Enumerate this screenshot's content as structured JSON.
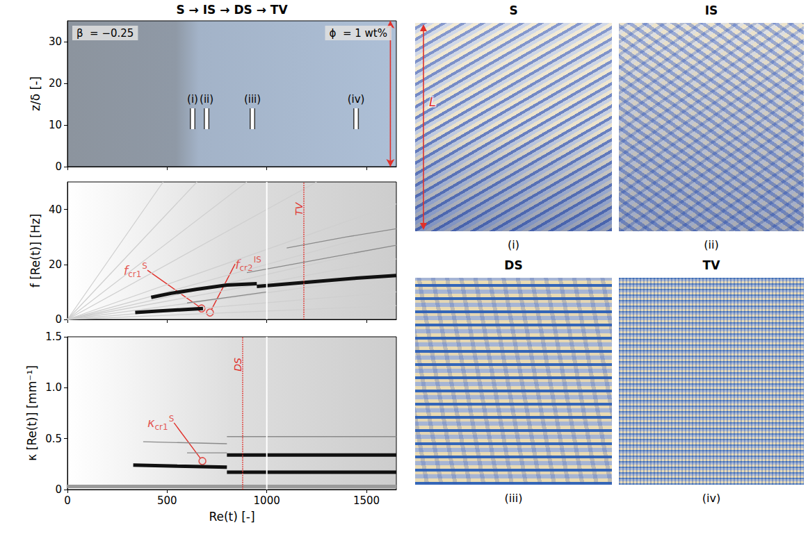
{
  "title": "S → IS → DS → TV",
  "chart_data": [
    {
      "type": "spacetime",
      "ylabel": "z/δ [-]",
      "xlim": [
        0,
        1650
      ],
      "xticks": [
        0,
        500,
        1000,
        1500
      ],
      "ylim": [
        0,
        35
      ],
      "yticks": [
        0,
        10,
        20,
        30
      ],
      "tick_labels": "y",
      "grid": false,
      "annotations": [
        "β  = −0.25",
        "ϕ  = 1 wt%"
      ],
      "markers": {
        "z": [
          9,
          14
        ],
        "points": [
          {
            "label": "(i)",
            "x": 628
          },
          {
            "label": "(ii)",
            "x": 698
          },
          {
            "label": "(iii)",
            "x": 928
          },
          {
            "label": "(iv)",
            "x": 1448
          }
        ]
      },
      "arrow": {
        "label": "L",
        "x": 1620,
        "y": [
          0,
          35
        ],
        "color": "#e0302a"
      }
    },
    {
      "type": "spectrogram",
      "ylabel": "f [Re(t)] [Hz]",
      "xlim": [
        0,
        1650
      ],
      "xticks": [
        0,
        500,
        1000,
        1500
      ],
      "ylim": [
        0,
        50
      ],
      "yticks": [
        0,
        20,
        40
      ],
      "tick_labels": "y",
      "grid": false,
      "series": [
        {
          "color": "#cfcfcf",
          "line_style": "thin",
          "values": [
            [
              0,
              0
            ],
            [
              1650,
              5
            ]
          ]
        },
        {
          "color": "#cfcfcf",
          "line_style": "thin",
          "values": [
            [
              0,
              0
            ],
            [
              1650,
              10
            ]
          ]
        },
        {
          "color": "#cfcfcf",
          "line_style": "thin",
          "values": [
            [
              0,
              0
            ],
            [
              1650,
              16
            ]
          ]
        },
        {
          "color": "#cfcfcf",
          "line_style": "thin",
          "values": [
            [
              0,
              0
            ],
            [
              1650,
              22
            ]
          ]
        },
        {
          "color": "#cfcfcf",
          "line_style": "thin",
          "values": [
            [
              0,
              0
            ],
            [
              1650,
              27
            ]
          ]
        },
        {
          "color": "#cfcfcf",
          "line_style": "thin",
          "values": [
            [
              0,
              0
            ],
            [
              1650,
              33
            ]
          ]
        },
        {
          "color": "#cfcfcf",
          "line_style": "thin",
          "values": [
            [
              0,
              0
            ],
            [
              1650,
              42
            ]
          ]
        },
        {
          "color": "#cfcfcf",
          "line_style": "thin",
          "values": [
            [
              0,
              0
            ],
            [
              1250,
              50
            ]
          ]
        },
        {
          "color": "#cfcfcf",
          "line_style": "thin",
          "values": [
            [
              0,
              0
            ],
            [
              900,
              50
            ]
          ]
        },
        {
          "color": "#cfcfcf",
          "line_style": "thin",
          "values": [
            [
              0,
              0
            ],
            [
              650,
              50
            ]
          ]
        },
        {
          "color": "#cfcfcf",
          "line_style": "thin",
          "values": [
            [
              0,
              0
            ],
            [
              480,
              50
            ]
          ]
        },
        {
          "color": "#8a8a8a",
          "line_style": "thin",
          "values": [
            [
              600,
              6
            ],
            [
              800,
              8
            ],
            [
              1000,
              10
            ]
          ]
        },
        {
          "color": "#8a8a8a",
          "line_style": "thin",
          "values": [
            [
              900,
              17
            ],
            [
              1200,
              21
            ],
            [
              1650,
              27
            ]
          ]
        },
        {
          "color": "#8a8a8a",
          "line_style": "thin",
          "values": [
            [
              1100,
              26
            ],
            [
              1400,
              30
            ],
            [
              1650,
              33
            ]
          ]
        },
        {
          "color": "#111111",
          "line_style": "bold",
          "values": [
            [
              340,
              2.5
            ],
            [
              450,
              3
            ],
            [
              560,
              3.5
            ],
            [
              680,
              4
            ]
          ]
        },
        {
          "color": "#111111",
          "line_style": "bold",
          "values": [
            [
              420,
              8
            ],
            [
              520,
              9.5
            ],
            [
              650,
              11
            ],
            [
              800,
              12.5
            ],
            [
              950,
              13
            ]
          ]
        },
        {
          "color": "#111111",
          "line_style": "bold",
          "values": [
            [
              950,
              12
            ],
            [
              1200,
              13.5
            ],
            [
              1450,
              15
            ],
            [
              1650,
              16
            ]
          ]
        }
      ],
      "vlines": [
        {
          "x": 1000,
          "color": "#ffffff",
          "line_style": "solid"
        },
        {
          "x": 1186,
          "color": "#e0302a",
          "line_style": "dotted",
          "label": "TV"
        }
      ],
      "points": [
        {
          "x": 673,
          "y": 4,
          "color": "#e0302a",
          "label": {
            "base": "f",
            "sup": "S",
            "sub": "cr1"
          }
        },
        {
          "x": 715,
          "y": 2.5,
          "color": "#e0302a",
          "label": {
            "base": "f",
            "sup": "IS",
            "sub": "cr2"
          }
        }
      ]
    },
    {
      "type": "spectrogram",
      "xlabel": "Re(t) [-]",
      "ylabel": "κ [Re(t)] [mm⁻¹]",
      "xlim": [
        0,
        1650
      ],
      "xticks": [
        0,
        500,
        1000,
        1500
      ],
      "ylim": [
        0,
        1.5
      ],
      "yticks": [
        0,
        0.5,
        {
          "value": 1,
          "label": "1.0"
        },
        1.5
      ],
      "grid": false,
      "series": [
        {
          "color": "#9a9a9a",
          "line_style": "bold",
          "values": [
            [
              0,
              0.03
            ],
            [
              1650,
              0.03
            ]
          ]
        },
        {
          "color": "#8a8a8a",
          "line_style": "thin",
          "values": [
            [
              380,
              0.47
            ],
            [
              800,
              0.45
            ]
          ]
        },
        {
          "color": "#8a8a8a",
          "line_style": "thin",
          "values": [
            [
              600,
              0.36
            ],
            [
              800,
              0.36
            ]
          ]
        },
        {
          "color": "#8a8a8a",
          "line_style": "thin",
          "values": [
            [
              800,
              0.52
            ],
            [
              1650,
              0.52
            ]
          ]
        },
        {
          "color": "#111111",
          "line_style": "bold",
          "values": [
            [
              330,
              0.24
            ],
            [
              550,
              0.23
            ],
            [
              800,
              0.22
            ]
          ]
        },
        {
          "color": "#111111",
          "line_style": "bold",
          "values": [
            [
              800,
              0.17
            ],
            [
              1650,
              0.17
            ]
          ]
        },
        {
          "color": "#111111",
          "line_style": "bold",
          "values": [
            [
              800,
              0.34
            ],
            [
              1650,
              0.34
            ]
          ]
        }
      ],
      "vlines": [
        {
          "x": 879,
          "color": "#e0302a",
          "line_style": "dotted",
          "label": "DS"
        },
        {
          "x": 1000,
          "color": "#ffffff",
          "line_style": "solid"
        }
      ],
      "points": [
        {
          "x": 677,
          "y": 0.28,
          "color": "#e0302a",
          "label": {
            "base": "κ",
            "sup": "S",
            "sub": "cr1"
          }
        }
      ]
    }
  ],
  "images": [
    {
      "title": "S",
      "caption": "(i)",
      "pattern": "S",
      "arrow_label": "L",
      "arrow_color": "#e0302a"
    },
    {
      "title": "IS",
      "caption": "(ii)",
      "pattern": "IS"
    },
    {
      "title": "DS",
      "caption": "(iii)",
      "pattern": "DS"
    },
    {
      "title": "TV",
      "caption": "(iv)",
      "pattern": "TV"
    }
  ]
}
